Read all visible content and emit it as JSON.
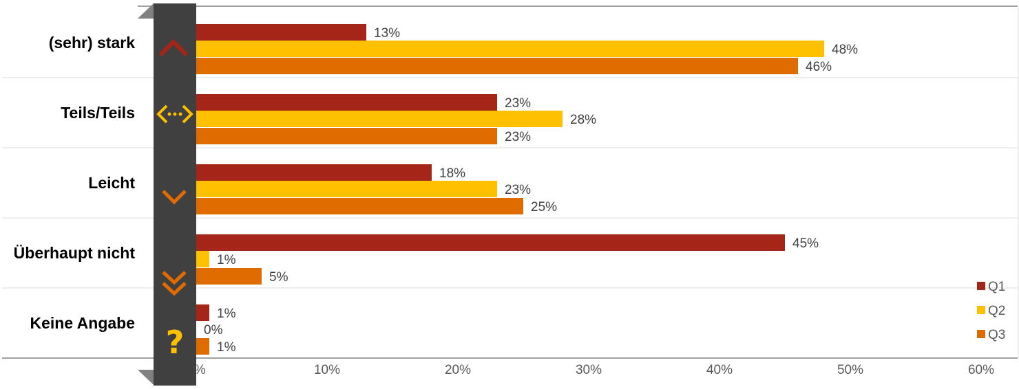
{
  "colors": {
    "Q1": "#a52519",
    "Q2": "#ffc000",
    "Q3": "#e06c00",
    "sidebar": "#404040",
    "grid": "#e8e8e8",
    "axis": "#808080"
  },
  "chart_data": {
    "type": "bar",
    "orientation": "horizontal",
    "categories": [
      "(sehr) stark",
      "Teils/Teils",
      "Leicht",
      "Überhaupt nicht",
      "Keine Angabe"
    ],
    "series": [
      {
        "name": "Q1",
        "values": [
          13,
          23,
          18,
          45,
          1
        ],
        "labels": [
          "13%",
          "23%",
          "18%",
          "45%",
          "1%"
        ]
      },
      {
        "name": "Q2",
        "values": [
          48,
          28,
          23,
          1,
          0
        ],
        "labels": [
          "48%",
          "28%",
          "23%",
          "1%",
          "0%"
        ]
      },
      {
        "name": "Q3",
        "values": [
          46,
          23,
          25,
          5,
          1
        ],
        "labels": [
          "46%",
          "23%",
          "25%",
          "5%",
          "1%"
        ]
      }
    ],
    "xlim": [
      0,
      60
    ],
    "x_ticks": [
      0,
      10,
      20,
      30,
      40,
      50,
      60
    ],
    "x_tick_labels": [
      "0%",
      "10%",
      "20%",
      "30%",
      "40%",
      "50%",
      "60%"
    ],
    "legend": {
      "position": "bottom-right",
      "entries": [
        "Q1",
        "Q2",
        "Q3"
      ]
    },
    "grid": true
  },
  "icons": [
    "chevron-up-icon",
    "horizontal-arrows-icon",
    "chevron-down-icon",
    "double-chevron-down-icon",
    "question-mark-icon"
  ]
}
